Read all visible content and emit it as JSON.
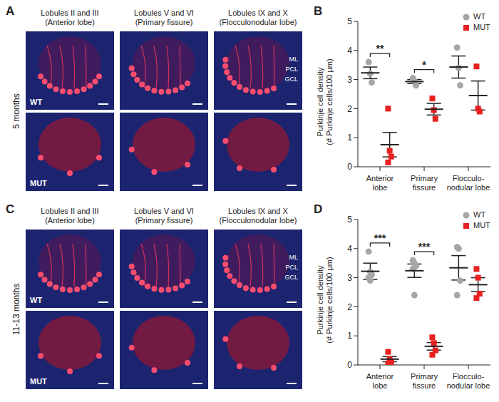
{
  "figure": {
    "panels": [
      {
        "label": "A",
        "side_label": "5 months",
        "columns": [
          {
            "title": "Lobules II and III",
            "subtitle": "(Anterior lobe)"
          },
          {
            "title": "Lobules V and VI",
            "subtitle": "(Primary fissure)"
          },
          {
            "title": "Lobules IX and X",
            "subtitle": "(Flocculonodular lobe)"
          }
        ],
        "rows": [
          "WT",
          "MUT"
        ],
        "layers": [
          "ML",
          "PCL",
          "GCL"
        ]
      },
      {
        "label": "C",
        "side_label": "11-13 months",
        "columns": [
          {
            "title": "Lobules II and III",
            "subtitle": "(Anterior lobe)"
          },
          {
            "title": "Lobules V and VI",
            "subtitle": "(Primary fissure)"
          },
          {
            "title": "Lobules IX and X",
            "subtitle": "(Flocculonodular lobe)"
          }
        ],
        "rows": [
          "WT",
          "MUT"
        ],
        "layers": [
          "ML",
          "PCL",
          "GCL"
        ]
      }
    ],
    "chart_labels": [
      "B",
      "D"
    ]
  },
  "chart_data": [
    {
      "type": "scatter",
      "ylabel": "Purkinje cell density\n(# Purkinje cells/100 μm)",
      "categories": [
        "Anterior lobe",
        "Primary fissure",
        "Flocculo-nodular lobe"
      ],
      "ylim": [
        0,
        5
      ],
      "yticks": [
        0,
        1,
        2,
        3,
        4,
        5
      ],
      "legend": "upper right",
      "significance": [
        "**",
        "*",
        null
      ],
      "series": [
        {
          "name": "WT",
          "color": "#a6a6a6",
          "marker": "circle",
          "values": [
            [
              3.6,
              3.2,
              2.9
            ],
            [
              3.05,
              2.95,
              2.8
            ],
            [
              4.1,
              3.4,
              2.8
            ]
          ],
          "mean": [
            3.23,
            2.93,
            3.43
          ],
          "sem": [
            0.2,
            0.07,
            0.38
          ]
        },
        {
          "name": "MUT",
          "color": "#e8201f",
          "marker": "square",
          "values": [
            [
              2.0,
              0.55,
              0.35,
              0.15
            ],
            [
              2.35,
              1.95,
              1.65
            ],
            [
              3.45,
              2.0,
              1.9
            ]
          ],
          "mean": [
            0.76,
            1.98,
            2.45
          ],
          "sem": [
            0.42,
            0.2,
            0.5
          ]
        }
      ]
    },
    {
      "type": "scatter",
      "ylabel": "Purkinje cell density\n(# Purkinje cells/100 μm)",
      "categories": [
        "Anterior lobe",
        "Primary fissure",
        "Flocculo-nodular lobe"
      ],
      "ylim": [
        0,
        5
      ],
      "yticks": [
        0,
        1,
        2,
        3,
        4,
        5
      ],
      "legend": "upper right",
      "significance": [
        "***",
        "***",
        null
      ],
      "series": [
        {
          "name": "WT",
          "color": "#a6a6a6",
          "marker": "circle",
          "values": [
            [
              3.9,
              3.2,
              3.1,
              3.0,
              2.9
            ],
            [
              3.6,
              3.5,
              3.4,
              3.3,
              2.4
            ],
            [
              4.05,
              4.0,
              2.9,
              2.4
            ]
          ],
          "mean": [
            3.22,
            3.24,
            3.34
          ],
          "sem": [
            0.28,
            0.23,
            0.42
          ]
        },
        {
          "name": "MUT",
          "color": "#e8201f",
          "marker": "square",
          "values": [
            [
              0.45,
              0.2,
              0.1,
              0.05
            ],
            [
              0.95,
              0.75,
              0.5,
              0.35
            ],
            [
              3.3,
              3.0,
              2.45,
              2.3
            ]
          ],
          "mean": [
            0.2,
            0.64,
            2.76
          ],
          "sem": [
            0.09,
            0.13,
            0.24
          ]
        }
      ]
    }
  ]
}
